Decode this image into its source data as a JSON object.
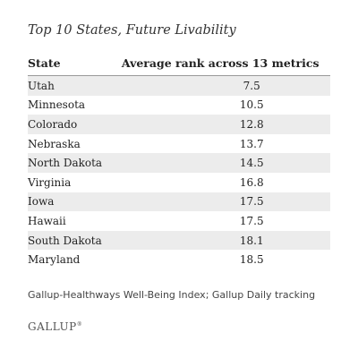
{
  "chart_data": {
    "type": "table",
    "title": "Top 10 States, Future Livability",
    "columns": [
      "State",
      "Average rank across 13 metrics"
    ],
    "rows": [
      {
        "state": "Utah",
        "value": "7.5"
      },
      {
        "state": "Minnesota",
        "value": "10.5"
      },
      {
        "state": "Colorado",
        "value": "12.8"
      },
      {
        "state": "Nebraska",
        "value": "13.7"
      },
      {
        "state": "North Dakota",
        "value": "14.5"
      },
      {
        "state": "Virginia",
        "value": "16.8"
      },
      {
        "state": "Iowa",
        "value": "17.5"
      },
      {
        "state": "Hawaii",
        "value": "17.5"
      },
      {
        "state": "South Dakota",
        "value": "18.1"
      },
      {
        "state": "Maryland",
        "value": "18.5"
      }
    ],
    "source": "Gallup-Healthways Well-Being Index; Gallup Daily tracking",
    "logo": "GALLUP"
  },
  "colors": {
    "shaded_row": "#ececec",
    "text": "#222222"
  }
}
